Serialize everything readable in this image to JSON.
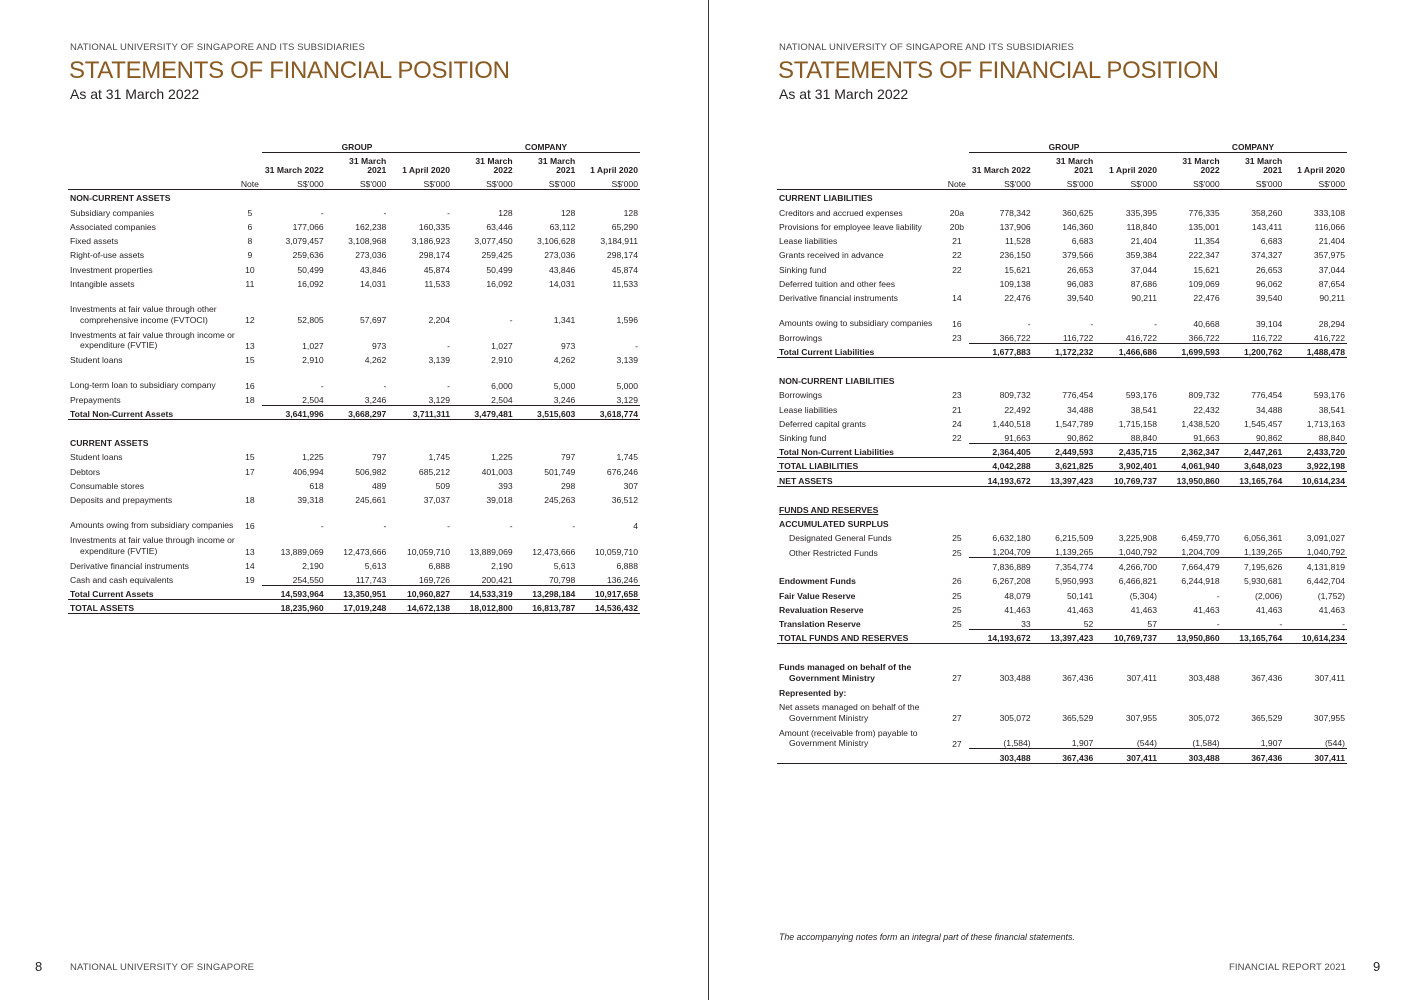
{
  "left": {
    "org": "NATIONAL UNIVERSITY OF SINGAPORE AND ITS SUBSIDIARIES",
    "title": "STATEMENTS OF FINANCIAL POSITION",
    "subtitle": "As at 31 March 2022",
    "group_label": "GROUP",
    "company_label": "COMPANY",
    "col_headers": [
      "31 March 2022",
      "31 March 2021",
      "1 April 2020",
      "31 March 2022",
      "31 March 2021",
      "1 April 2020"
    ],
    "note_label": "Note",
    "unit": "S$'000",
    "rows": [
      {
        "type": "head",
        "label": "NON-CURRENT ASSETS"
      },
      {
        "label": "Subsidiary companies",
        "note": "5",
        "v": [
          "-",
          "-",
          "-",
          "128",
          "128",
          "128"
        ]
      },
      {
        "label": "Associated companies",
        "note": "6",
        "v": [
          "177,066",
          "162,238",
          "160,335",
          "63,446",
          "63,112",
          "65,290"
        ]
      },
      {
        "label": "Fixed assets",
        "note": "8",
        "v": [
          "3,079,457",
          "3,108,968",
          "3,186,923",
          "3,077,450",
          "3,106,628",
          "3,184,911"
        ]
      },
      {
        "label": "Right-of-use assets",
        "note": "9",
        "v": [
          "259,636",
          "273,036",
          "298,174",
          "259,425",
          "273,036",
          "298,174"
        ]
      },
      {
        "label": "Investment properties",
        "note": "10",
        "v": [
          "50,499",
          "43,846",
          "45,874",
          "50,499",
          "43,846",
          "45,874"
        ]
      },
      {
        "label": "Intangible assets",
        "note": "11",
        "v": [
          "16,092",
          "14,031",
          "11,533",
          "16,092",
          "14,031",
          "11,533"
        ]
      },
      {
        "label": "Investments at fair value through other comprehensive income (FVTOCI)",
        "note": "12",
        "v": [
          "52,805",
          "57,697",
          "2,204",
          "-",
          "1,341",
          "1,596"
        ],
        "lines": 3
      },
      {
        "label": "Investments at fair value through income or expenditure (FVTIE)",
        "note": "13",
        "v": [
          "1,027",
          "973",
          "-",
          "1,027",
          "973",
          "-"
        ],
        "lines": 2
      },
      {
        "label": "Student loans",
        "note": "15",
        "v": [
          "2,910",
          "4,262",
          "3,139",
          "2,910",
          "4,262",
          "3,139"
        ]
      },
      {
        "label": "Long-term loan to subsidiary company",
        "note": "16",
        "v": [
          "-",
          "-",
          "-",
          "6,000",
          "5,000",
          "5,000"
        ],
        "lines": 2
      },
      {
        "label": "Prepayments",
        "note": "18",
        "v": [
          "2,504",
          "3,246",
          "3,129",
          "2,504",
          "3,246",
          "3,129"
        ]
      },
      {
        "type": "total",
        "label": "Total Non-Current Assets",
        "note": "",
        "v": [
          "3,641,996",
          "3,668,297",
          "3,711,311",
          "3,479,481",
          "3,515,603",
          "3,618,774"
        ]
      },
      {
        "type": "gap"
      },
      {
        "type": "head",
        "label": "CURRENT ASSETS"
      },
      {
        "label": "Student loans",
        "note": "15",
        "v": [
          "1,225",
          "797",
          "1,745",
          "1,225",
          "797",
          "1,745"
        ]
      },
      {
        "label": "Debtors",
        "note": "17",
        "v": [
          "406,994",
          "506,982",
          "685,212",
          "401,003",
          "501,749",
          "676,246"
        ]
      },
      {
        "label": "Consumable stores",
        "note": "",
        "v": [
          "618",
          "489",
          "509",
          "393",
          "298",
          "307"
        ]
      },
      {
        "label": "Deposits and prepayments",
        "note": "18",
        "v": [
          "39,318",
          "245,661",
          "37,037",
          "39,018",
          "245,263",
          "36,512"
        ]
      },
      {
        "label": "Amounts owing from subsidiary companies",
        "note": "16",
        "v": [
          "-",
          "-",
          "-",
          "-",
          "-",
          "4"
        ],
        "lines": 2
      },
      {
        "label": "Investments at fair value through income or expenditure (FVTIE)",
        "note": "13",
        "v": [
          "13,889,069",
          "12,473,666",
          "10,059,710",
          "13,889,069",
          "12,473,666",
          "10,059,710"
        ],
        "lines": 2
      },
      {
        "label": "Derivative financial instruments",
        "note": "14",
        "v": [
          "2,190",
          "5,613",
          "6,888",
          "2,190",
          "5,613",
          "6,888"
        ]
      },
      {
        "label": "Cash and cash equivalents",
        "note": "19",
        "v": [
          "254,550",
          "117,743",
          "169,726",
          "200,421",
          "70,798",
          "136,246"
        ]
      },
      {
        "type": "total",
        "label": "Total Current Assets",
        "note": "",
        "v": [
          "14,593,964",
          "13,350,951",
          "10,960,827",
          "14,533,319",
          "13,298,184",
          "10,917,658"
        ]
      },
      {
        "type": "total",
        "label": "TOTAL ASSETS",
        "note": "",
        "v": [
          "18,235,960",
          "17,019,248",
          "14,672,138",
          "18,012,800",
          "16,813,787",
          "14,536,432"
        ],
        "nb": true
      }
    ],
    "page_number": "8",
    "footer": "NATIONAL UNIVERSITY OF SINGAPORE"
  },
  "right": {
    "org": "NATIONAL UNIVERSITY OF SINGAPORE AND ITS SUBSIDIARIES",
    "title": "STATEMENTS OF FINANCIAL POSITION",
    "subtitle": "As at 31 March 2022",
    "group_label": "GROUP",
    "company_label": "COMPANY",
    "col_headers": [
      "31 March 2022",
      "31 March 2021",
      "1 April 2020",
      "31 March 2022",
      "31 March 2021",
      "1 April 2020"
    ],
    "note_label": "Note",
    "unit": "S$'000",
    "rows": [
      {
        "type": "head",
        "label": "CURRENT LIABILITIES"
      },
      {
        "label": "Creditors and accrued expenses",
        "note": "20a",
        "v": [
          "778,342",
          "360,625",
          "335,395",
          "776,335",
          "358,260",
          "333,108"
        ]
      },
      {
        "label": "Provisions for employee leave liability",
        "note": "20b",
        "v": [
          "137,906",
          "146,360",
          "118,840",
          "135,001",
          "143,411",
          "116,066"
        ]
      },
      {
        "label": "Lease liabilities",
        "note": "21",
        "v": [
          "11,528",
          "6,683",
          "21,404",
          "11,354",
          "6,683",
          "21,404"
        ]
      },
      {
        "label": "Grants received in advance",
        "note": "22",
        "v": [
          "236,150",
          "379,566",
          "359,384",
          "222,347",
          "374,327",
          "357,975"
        ]
      },
      {
        "label": "Sinking fund",
        "note": "22",
        "v": [
          "15,621",
          "26,653",
          "37,044",
          "15,621",
          "26,653",
          "37,044"
        ]
      },
      {
        "label": "Deferred tuition and other fees",
        "note": "",
        "v": [
          "109,138",
          "96,083",
          "87,686",
          "109,069",
          "96,062",
          "87,654"
        ]
      },
      {
        "label": "Derivative financial instruments",
        "note": "14",
        "v": [
          "22,476",
          "39,540",
          "90,211",
          "22,476",
          "39,540",
          "90,211"
        ]
      },
      {
        "label": "Amounts owing to subsidiary companies",
        "note": "16",
        "v": [
          "-",
          "-",
          "-",
          "40,668",
          "39,104",
          "28,294"
        ],
        "lines": 2
      },
      {
        "label": "Borrowings",
        "note": "23",
        "v": [
          "366,722",
          "116,722",
          "416,722",
          "366,722",
          "116,722",
          "416,722"
        ]
      },
      {
        "type": "total",
        "label": "Total Current Liabilities",
        "note": "",
        "v": [
          "1,677,883",
          "1,172,232",
          "1,466,686",
          "1,699,593",
          "1,200,762",
          "1,488,478"
        ]
      },
      {
        "type": "gap"
      },
      {
        "type": "head",
        "label": "NON-CURRENT LIABILITIES"
      },
      {
        "label": "Borrowings",
        "note": "23",
        "v": [
          "809,732",
          "776,454",
          "593,176",
          "809,732",
          "776,454",
          "593,176"
        ]
      },
      {
        "label": "Lease liabilities",
        "note": "21",
        "v": [
          "22,492",
          "34,488",
          "38,541",
          "22,432",
          "34,488",
          "38,541"
        ]
      },
      {
        "label": "Deferred capital grants",
        "note": "24",
        "v": [
          "1,440,518",
          "1,547,789",
          "1,715,158",
          "1,438,520",
          "1,545,457",
          "1,713,163"
        ]
      },
      {
        "label": "Sinking fund",
        "note": "22",
        "v": [
          "91,663",
          "90,862",
          "88,840",
          "91,663",
          "90,862",
          "88,840"
        ]
      },
      {
        "type": "total",
        "label": "Total Non-Current Liabilities",
        "note": "",
        "v": [
          "2,364,405",
          "2,449,593",
          "2,435,715",
          "2,362,347",
          "2,447,261",
          "2,433,720"
        ]
      },
      {
        "type": "total",
        "label": "TOTAL LIABILITIES",
        "note": "",
        "v": [
          "4,042,288",
          "3,621,825",
          "3,902,401",
          "4,061,940",
          "3,648,023",
          "3,922,198"
        ],
        "nb": true
      },
      {
        "type": "total",
        "label": "NET ASSETS",
        "note": "",
        "v": [
          "14,193,672",
          "13,397,423",
          "10,769,737",
          "13,950,860",
          "13,165,764",
          "10,614,234"
        ],
        "nb": true
      },
      {
        "type": "gap"
      },
      {
        "type": "head",
        "label": "FUNDS AND RESERVES",
        "underline": true
      },
      {
        "type": "head",
        "label": "ACCUMULATED SURPLUS"
      },
      {
        "label": "Designated General Funds",
        "note": "25",
        "v": [
          "6,632,180",
          "6,215,509",
          "3,225,908",
          "6,459,770",
          "6,056,361",
          "3,091,027"
        ],
        "indent": true
      },
      {
        "label": "Other Restricted Funds",
        "note": "25",
        "v": [
          "1,204,709",
          "1,139,265",
          "1,040,792",
          "1,204,709",
          "1,139,265",
          "1,040,792"
        ],
        "indent": true
      },
      {
        "type": "sub",
        "label": "",
        "note": "",
        "v": [
          "7,836,889",
          "7,354,774",
          "4,266,700",
          "7,664,479",
          "7,195,626",
          "4,131,819"
        ]
      },
      {
        "type": "bold",
        "label": "Endowment Funds",
        "note": "26",
        "v": [
          "6,267,208",
          "5,950,993",
          "6,466,821",
          "6,244,918",
          "5,930,681",
          "6,442,704"
        ]
      },
      {
        "type": "bold",
        "label": "Fair Value Reserve",
        "note": "25",
        "v": [
          "48,079",
          "50,141",
          "(5,304)",
          "-",
          "(2,006)",
          "(1,752)"
        ]
      },
      {
        "type": "bold",
        "label": "Revaluation Reserve",
        "note": "25",
        "v": [
          "41,463",
          "41,463",
          "41,463",
          "41,463",
          "41,463",
          "41,463"
        ]
      },
      {
        "type": "bold",
        "label": "Translation Reserve",
        "note": "25",
        "v": [
          "33",
          "52",
          "57",
          "-",
          "-",
          "-"
        ]
      },
      {
        "type": "total",
        "label": "TOTAL FUNDS AND RESERVES",
        "note": "",
        "v": [
          "14,193,672",
          "13,397,423",
          "10,769,737",
          "13,950,860",
          "13,165,764",
          "10,614,234"
        ]
      },
      {
        "type": "gap"
      },
      {
        "type": "bold",
        "label": "Funds managed on behalf of the Government Ministry",
        "note": "27",
        "v": [
          "303,488",
          "367,436",
          "307,411",
          "303,488",
          "367,436",
          "307,411"
        ],
        "lines": 2
      },
      {
        "type": "head",
        "label": "Represented by:"
      },
      {
        "label": "Net assets managed on behalf of the Government Ministry",
        "note": "27",
        "v": [
          "305,072",
          "365,529",
          "307,955",
          "305,072",
          "365,529",
          "307,955"
        ],
        "lines": 2
      },
      {
        "label": "Amount (receivable from) payable to Government Ministry",
        "note": "27",
        "v": [
          "(1,584)",
          "1,907",
          "(544)",
          "(1,584)",
          "1,907",
          "(544)"
        ],
        "lines": 2
      },
      {
        "type": "final",
        "label": "",
        "note": "",
        "v": [
          "303,488",
          "367,436",
          "307,411",
          "303,488",
          "367,436",
          "307,411"
        ]
      }
    ],
    "footnote": "The accompanying notes form an integral part of these financial statements.",
    "footer": "FINANCIAL REPORT 2021",
    "page_number": "9"
  }
}
